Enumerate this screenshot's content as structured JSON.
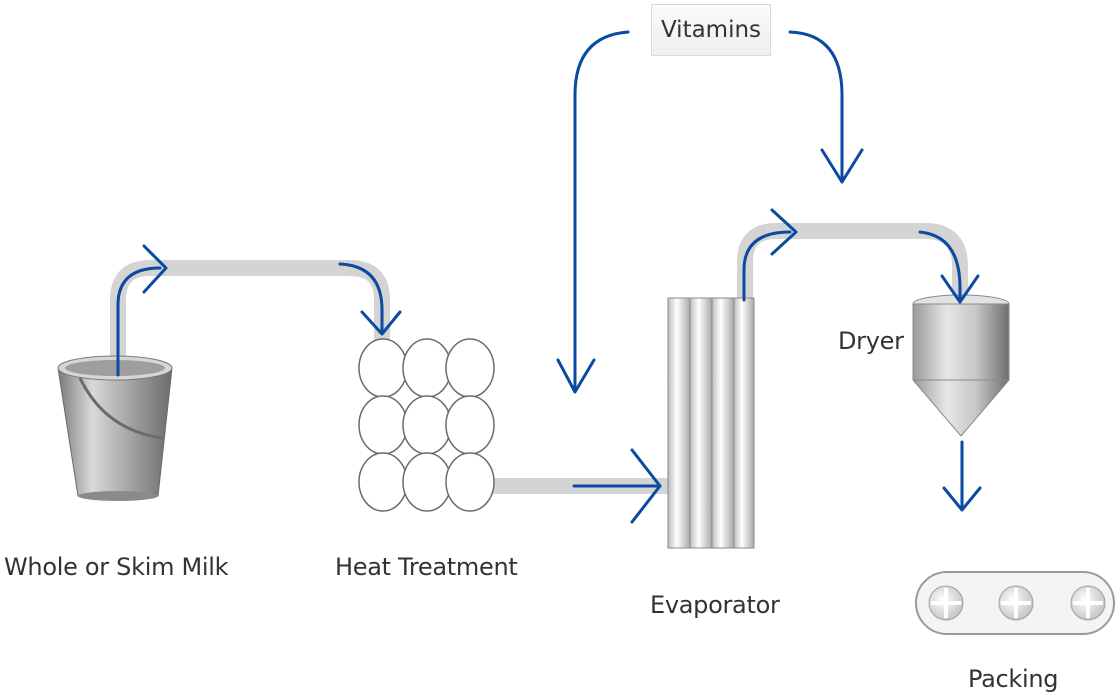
{
  "diagram": {
    "colors": {
      "arrow": "#0a4aa0",
      "pipe": "#d4d4d4",
      "metal_light": "#f2f2f2",
      "metal_dark": "#7a7a7a",
      "text": "#333333"
    },
    "nodes": {
      "milk": {
        "label": "Whole or Skim Milk",
        "icon": "bucket-icon"
      },
      "heat": {
        "label": "Heat Treatment",
        "icon": "heat-exchanger-grid-icon"
      },
      "evaporator": {
        "label": "Evaporator",
        "icon": "evaporator-tubes-icon"
      },
      "dryer": {
        "label": "Dryer",
        "icon": "dryer-hopper-icon"
      },
      "packing": {
        "label": "Packing",
        "icon": "conveyor-icon"
      },
      "vitamins": {
        "label": "Vitamins"
      }
    },
    "edges": [
      {
        "from": "milk",
        "to": "heat"
      },
      {
        "from": "heat",
        "to": "evaporator"
      },
      {
        "from": "vitamins",
        "to": "evaporator"
      },
      {
        "from": "vitamins",
        "to": "dryer"
      },
      {
        "from": "evaporator",
        "to": "dryer"
      },
      {
        "from": "dryer",
        "to": "packing"
      }
    ]
  }
}
